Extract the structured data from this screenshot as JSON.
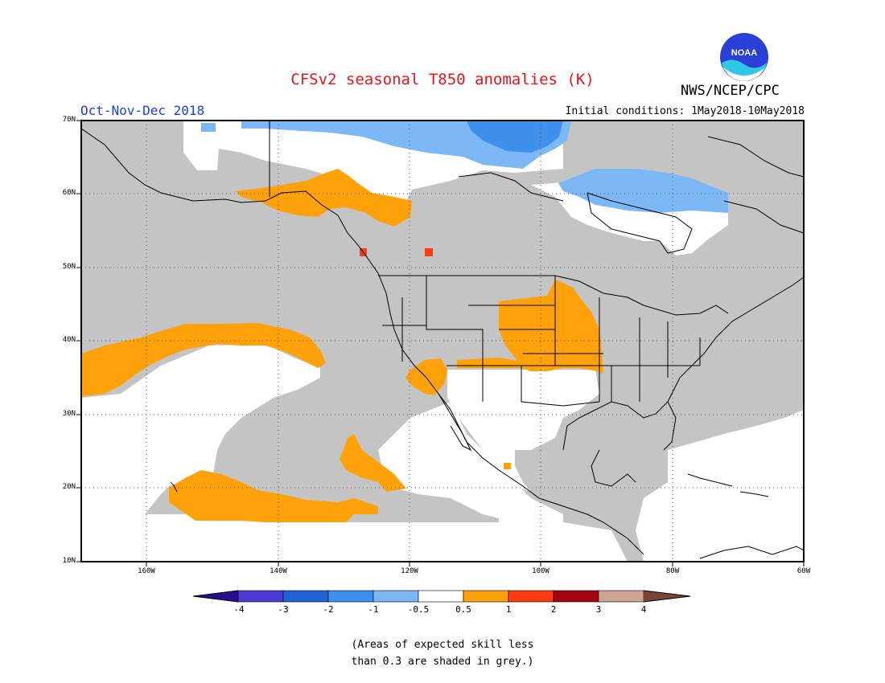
{
  "header": {
    "title": "CFSv2 seasonal T850 anomalies (K)",
    "period": "Oct-Nov-Dec 2018",
    "initial_conditions": "Initial conditions: 1May2018-10May2018",
    "agency": "NWS/NCEP/CPC",
    "logo_text": "NOAA"
  },
  "axes": {
    "lat_labels": [
      "70N",
      "60N",
      "50N",
      "40N",
      "30N",
      "20N",
      "10N"
    ],
    "lon_labels": [
      "160W",
      "140W",
      "120W",
      "100W",
      "80W",
      "60W"
    ]
  },
  "colorbar": {
    "ticks": [
      "-4",
      "-3",
      "-2",
      "-1",
      "-0.5",
      "0.5",
      "1",
      "2",
      "3",
      "4"
    ],
    "colors": [
      "#2a0f8c",
      "#4a3ad0",
      "#1f63d6",
      "#3f8fec",
      "#7cb8f6",
      "#ffffff",
      "#ffa10a",
      "#ff3b12",
      "#a4060e",
      "#cfa494",
      "#7a4634"
    ]
  },
  "legend_note": {
    "line1": "(Areas of expected skill less",
    "line2": "than 0.3 are shaded in grey.)"
  },
  "colors": {
    "grey_skill": "#c4c4c4",
    "orange_anomaly": "#ffa10a",
    "red_anomaly": "#ff3b12",
    "light_blue_anomaly": "#7cb8f6",
    "blue_anomaly": "#3f8fec"
  }
}
